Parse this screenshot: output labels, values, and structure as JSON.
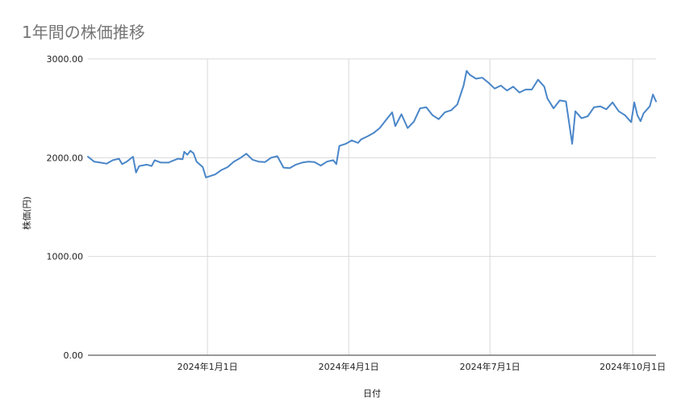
{
  "chart_data": {
    "type": "line",
    "title": "1年間の株価推移",
    "xlabel": "日付",
    "ylabel": "株価(円)",
    "ylim": [
      0,
      3000
    ],
    "y_ticks": [
      "0.00",
      "1000.00",
      "2000.00",
      "3000.00"
    ],
    "x_range": [
      "2023-10-16",
      "2024-10-16"
    ],
    "x_ticks": [
      {
        "date": "2024-01-01",
        "label": "2024年1月1日"
      },
      {
        "date": "2024-04-01",
        "label": "2024年4月1日"
      },
      {
        "date": "2024-07-01",
        "label": "2024年7月1日"
      },
      {
        "date": "2024-10-01",
        "label": "2024年10月1日"
      }
    ],
    "grid": true,
    "legend": "none",
    "line_color": "#4a86c8",
    "series": [
      {
        "points": [
          [
            "2023-10-16",
            2010
          ],
          [
            "2023-10-20",
            1960
          ],
          [
            "2023-10-24",
            1950
          ],
          [
            "2023-10-28",
            1940
          ],
          [
            "2023-11-01",
            1975
          ],
          [
            "2023-11-05",
            1990
          ],
          [
            "2023-11-07",
            1935
          ],
          [
            "2023-11-10",
            1960
          ],
          [
            "2023-11-14",
            2010
          ],
          [
            "2023-11-16",
            1850
          ],
          [
            "2023-11-18",
            1915
          ],
          [
            "2023-11-23",
            1930
          ],
          [
            "2023-11-26",
            1915
          ],
          [
            "2023-11-28",
            1975
          ],
          [
            "2023-12-02",
            1950
          ],
          [
            "2023-12-07",
            1950
          ],
          [
            "2023-12-09",
            1965
          ],
          [
            "2023-12-13",
            1990
          ],
          [
            "2023-12-16",
            1985
          ],
          [
            "2023-12-17",
            2060
          ],
          [
            "2023-12-19",
            2030
          ],
          [
            "2023-12-21",
            2070
          ],
          [
            "2023-12-23",
            2045
          ],
          [
            "2023-12-25",
            1960
          ],
          [
            "2023-12-29",
            1905
          ],
          [
            "2023-12-31",
            1800
          ],
          [
            "2024-01-02",
            1810
          ],
          [
            "2024-01-06",
            1830
          ],
          [
            "2024-01-10",
            1875
          ],
          [
            "2024-01-14",
            1905
          ],
          [
            "2024-01-18",
            1960
          ],
          [
            "2024-01-22",
            1995
          ],
          [
            "2024-01-26",
            2040
          ],
          [
            "2024-01-30",
            1980
          ],
          [
            "2024-02-03",
            1960
          ],
          [
            "2024-02-07",
            1955
          ],
          [
            "2024-02-11",
            2000
          ],
          [
            "2024-02-15",
            2015
          ],
          [
            "2024-02-19",
            1900
          ],
          [
            "2024-02-23",
            1895
          ],
          [
            "2024-02-27",
            1930
          ],
          [
            "2024-03-02",
            1950
          ],
          [
            "2024-03-06",
            1960
          ],
          [
            "2024-03-10",
            1955
          ],
          [
            "2024-03-14",
            1920
          ],
          [
            "2024-03-18",
            1960
          ],
          [
            "2024-03-22",
            1975
          ],
          [
            "2024-03-24",
            1935
          ],
          [
            "2024-03-26",
            2120
          ],
          [
            "2024-03-30",
            2140
          ],
          [
            "2024-04-03",
            2175
          ],
          [
            "2024-04-07",
            2150
          ],
          [
            "2024-04-09",
            2185
          ],
          [
            "2024-04-13",
            2215
          ],
          [
            "2024-04-17",
            2250
          ],
          [
            "2024-04-21",
            2300
          ],
          [
            "2024-04-25",
            2380
          ],
          [
            "2024-04-29",
            2460
          ],
          [
            "2024-05-01",
            2320
          ],
          [
            "2024-05-05",
            2440
          ],
          [
            "2024-05-09",
            2300
          ],
          [
            "2024-05-13",
            2365
          ],
          [
            "2024-05-17",
            2500
          ],
          [
            "2024-05-21",
            2510
          ],
          [
            "2024-05-25",
            2430
          ],
          [
            "2024-05-29",
            2390
          ],
          [
            "2024-06-02",
            2460
          ],
          [
            "2024-06-06",
            2480
          ],
          [
            "2024-06-10",
            2540
          ],
          [
            "2024-06-14",
            2730
          ],
          [
            "2024-06-16",
            2880
          ],
          [
            "2024-06-18",
            2840
          ],
          [
            "2024-06-22",
            2800
          ],
          [
            "2024-06-26",
            2810
          ],
          [
            "2024-06-30",
            2760
          ],
          [
            "2024-07-04",
            2700
          ],
          [
            "2024-07-08",
            2730
          ],
          [
            "2024-07-12",
            2680
          ],
          [
            "2024-07-16",
            2720
          ],
          [
            "2024-07-20",
            2660
          ],
          [
            "2024-07-24",
            2690
          ],
          [
            "2024-07-28",
            2690
          ],
          [
            "2024-08-01",
            2790
          ],
          [
            "2024-08-05",
            2720
          ],
          [
            "2024-08-07",
            2600
          ],
          [
            "2024-08-11",
            2500
          ],
          [
            "2024-08-15",
            2580
          ],
          [
            "2024-08-19",
            2570
          ],
          [
            "2024-08-23",
            2140
          ],
          [
            "2024-08-25",
            2470
          ],
          [
            "2024-08-29",
            2400
          ],
          [
            "2024-09-02",
            2420
          ],
          [
            "2024-09-06",
            2510
          ],
          [
            "2024-09-10",
            2520
          ],
          [
            "2024-09-14",
            2490
          ],
          [
            "2024-09-18",
            2560
          ],
          [
            "2024-09-22",
            2470
          ],
          [
            "2024-09-26",
            2430
          ],
          [
            "2024-09-30",
            2360
          ],
          [
            "2024-10-02",
            2560
          ],
          [
            "2024-10-04",
            2430
          ],
          [
            "2024-10-06",
            2370
          ],
          [
            "2024-10-08",
            2450
          ],
          [
            "2024-10-12",
            2520
          ],
          [
            "2024-10-14",
            2640
          ],
          [
            "2024-10-16",
            2570
          ]
        ]
      }
    ]
  }
}
